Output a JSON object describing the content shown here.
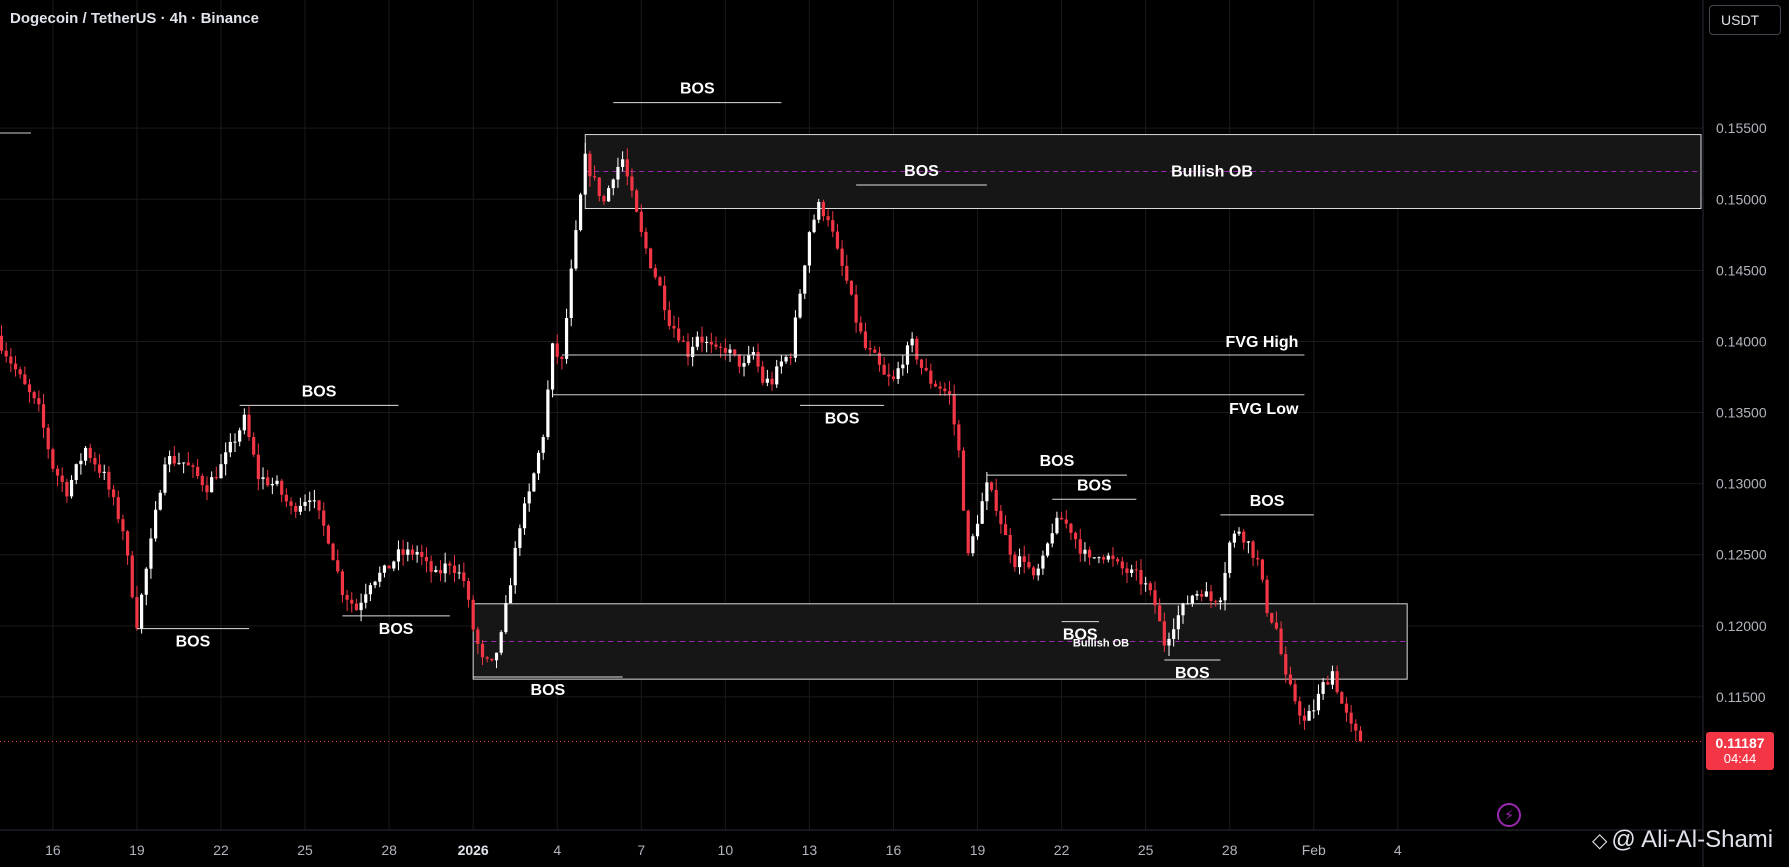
{
  "header": {
    "symbol": "Dogecoin / TetherUS · 4h · Binance"
  },
  "currency": "USDT",
  "price_tag": {
    "price": "0.11187",
    "countdown": "04:44"
  },
  "watermark": "@ Ali-Al-Shami",
  "colors": {
    "bull": "#ffffff",
    "bear": "#f23645",
    "background": "#000000",
    "grid": "#1a1a1a",
    "zone_border": "#d9d9d9",
    "zone_fill": "#161616",
    "mid_line": "#9c27b0"
  },
  "chart_data": {
    "type": "candlestick",
    "title": "Dogecoin / TetherUS · 4h · Binance",
    "ylim": [
      0.1074,
      0.1612
    ],
    "y_ticks": [
      "0.15500",
      "0.15000",
      "0.14500",
      "0.14000",
      "0.13500",
      "0.13000",
      "0.12500",
      "0.12000",
      "0.11500"
    ],
    "y_tick_values": [
      0.155,
      0.15,
      0.145,
      0.14,
      0.135,
      0.13,
      0.125,
      0.12,
      0.115
    ],
    "x_ticks": [
      "16",
      "19",
      "22",
      "25",
      "28",
      "2026",
      "4",
      "7",
      "10",
      "13",
      "16",
      "19",
      "22",
      "25",
      "28",
      "Feb",
      "4"
    ],
    "x_tick_bars": [
      11,
      29,
      47,
      65,
      83,
      101,
      119,
      137,
      155,
      173,
      191,
      209,
      227,
      245,
      263,
      281,
      299
    ],
    "current_price": 0.11187,
    "bars_per_day": 6,
    "first_bar_date": "Dec 14",
    "close_path": [
      [
        0,
        0.1398
      ],
      [
        5,
        0.1368
      ],
      [
        8,
        0.1352
      ],
      [
        11,
        0.1312
      ],
      [
        14,
        0.1295
      ],
      [
        18,
        0.1325
      ],
      [
        22,
        0.1305
      ],
      [
        26,
        0.1268
      ],
      [
        29,
        0.1202
      ],
      [
        32,
        0.1258
      ],
      [
        35,
        0.1318
      ],
      [
        39,
        0.1315
      ],
      [
        44,
        0.1298
      ],
      [
        47,
        0.1312
      ],
      [
        52,
        0.1345
      ],
      [
        55,
        0.1305
      ],
      [
        59,
        0.1298
      ],
      [
        62,
        0.1282
      ],
      [
        66,
        0.1292
      ],
      [
        70,
        0.1262
      ],
      [
        73,
        0.1225
      ],
      [
        76,
        0.1212
      ],
      [
        79,
        0.1232
      ],
      [
        82,
        0.1238
      ],
      [
        85,
        0.125
      ],
      [
        89,
        0.1252
      ],
      [
        91,
        0.1242
      ],
      [
        93,
        0.1235
      ],
      [
        96,
        0.1245
      ],
      [
        99,
        0.1232
      ],
      [
        101,
        0.1198
      ],
      [
        103,
        0.1175
      ],
      [
        105,
        0.1172
      ],
      [
        107,
        0.1192
      ],
      [
        109,
        0.1232
      ],
      [
        111,
        0.1272
      ],
      [
        113,
        0.1292
      ],
      [
        116,
        0.1335
      ],
      [
        118,
        0.1395
      ],
      [
        120,
        0.1385
      ],
      [
        122,
        0.1448
      ],
      [
        125,
        0.1528
      ],
      [
        127,
        0.1512
      ],
      [
        129,
        0.1498
      ],
      [
        131,
        0.1518
      ],
      [
        133,
        0.1528
      ],
      [
        135,
        0.1502
      ],
      [
        137,
        0.1475
      ],
      [
        139,
        0.1455
      ],
      [
        141,
        0.1438
      ],
      [
        143,
        0.1415
      ],
      [
        145,
        0.1405
      ],
      [
        147,
        0.1392
      ],
      [
        149,
        0.1405
      ],
      [
        151,
        0.1398
      ],
      [
        153,
        0.1392
      ],
      [
        155,
        0.1395
      ],
      [
        157,
        0.1388
      ],
      [
        159,
        0.1382
      ],
      [
        161,
        0.1392
      ],
      [
        163,
        0.1372
      ],
      [
        165,
        0.1372
      ],
      [
        167,
        0.1385
      ],
      [
        169,
        0.1392
      ],
      [
        171,
        0.1435
      ],
      [
        173,
        0.1478
      ],
      [
        175,
        0.1495
      ],
      [
        177,
        0.1488
      ],
      [
        179,
        0.1462
      ],
      [
        181,
        0.1442
      ],
      [
        183,
        0.1415
      ],
      [
        185,
        0.1395
      ],
      [
        187,
        0.1388
      ],
      [
        189,
        0.1375
      ],
      [
        191,
        0.1372
      ],
      [
        193,
        0.1388
      ],
      [
        195,
        0.1398
      ],
      [
        197,
        0.1382
      ],
      [
        199,
        0.1372
      ],
      [
        201,
        0.1368
      ],
      [
        203,
        0.1362
      ],
      [
        205,
        0.1322
      ],
      [
        207,
        0.1248
      ],
      [
        209,
        0.1275
      ],
      [
        211,
        0.1298
      ],
      [
        213,
        0.1285
      ],
      [
        215,
        0.1262
      ],
      [
        217,
        0.1245
      ],
      [
        219,
        0.1248
      ],
      [
        221,
        0.1232
      ],
      [
        223,
        0.1245
      ],
      [
        225,
        0.1268
      ],
      [
        227,
        0.1275
      ],
      [
        229,
        0.1268
      ],
      [
        231,
        0.1255
      ],
      [
        233,
        0.1245
      ],
      [
        235,
        0.1252
      ],
      [
        237,
        0.1248
      ],
      [
        239,
        0.1242
      ],
      [
        241,
        0.1238
      ],
      [
        243,
        0.1235
      ],
      [
        245,
        0.1228
      ],
      [
        247,
        0.1215
      ],
      [
        249,
        0.1188
      ],
      [
        251,
        0.1202
      ],
      [
        253,
        0.1212
      ],
      [
        255,
        0.1222
      ],
      [
        257,
        0.1225
      ],
      [
        259,
        0.1218
      ],
      [
        261,
        0.1222
      ],
      [
        263,
        0.1258
      ],
      [
        265,
        0.1268
      ],
      [
        267,
        0.1258
      ],
      [
        269,
        0.1245
      ],
      [
        271,
        0.1212
      ],
      [
        273,
        0.1198
      ],
      [
        275,
        0.1162
      ],
      [
        277,
        0.1148
      ],
      [
        279,
        0.1132
      ],
      [
        281,
        0.1142
      ],
      [
        283,
        0.1158
      ],
      [
        285,
        0.1168
      ],
      [
        287,
        0.1145
      ],
      [
        289,
        0.1128
      ],
      [
        291,
        0.11187
      ]
    ],
    "zones": [
      {
        "label": "Bullish OB",
        "top": 0.15455,
        "bottom": 0.14935,
        "start_bar": 125,
        "end_bar": null
      },
      {
        "label": "Bullish OB",
        "top": 0.12155,
        "bottom": 0.11625,
        "start_bar": 101,
        "end_bar": 301
      }
    ],
    "levels": [
      {
        "label": "FVG High",
        "value": 0.13905,
        "start_bar": 120,
        "end_bar": 279
      },
      {
        "label": "FVG Low",
        "value": 0.13625,
        "start_bar": 118,
        "end_bar": 279
      }
    ],
    "annotations": [
      {
        "label": "BOS",
        "value": 0.1568,
        "start_bar": 131,
        "end_bar": 167
      },
      {
        "label": "BOS",
        "value": 0.151,
        "start_bar": 183,
        "end_bar": 211
      },
      {
        "label": "BOS",
        "value": 0.1355,
        "start_bar": 51,
        "end_bar": 85
      },
      {
        "label": "BOS",
        "value": 0.1355,
        "start_bar": 171,
        "end_bar": 189
      },
      {
        "label": "BOS",
        "value": 0.1198,
        "start_bar": 29,
        "end_bar": 53
      },
      {
        "label": "BOS",
        "value": 0.1207,
        "start_bar": 73,
        "end_bar": 96
      },
      {
        "label": "BOS",
        "value": 0.1164,
        "start_bar": 101,
        "end_bar": 133
      },
      {
        "label": "BOS",
        "value": 0.1306,
        "start_bar": 211,
        "end_bar": 241
      },
      {
        "label": "BOS",
        "value": 0.1289,
        "start_bar": 225,
        "end_bar": 243
      },
      {
        "label": "BOS",
        "value": 0.1278,
        "start_bar": 261,
        "end_bar": 281
      },
      {
        "label": "BOS",
        "value": 0.1203,
        "start_bar": 227,
        "end_bar": 235
      },
      {
        "label": "BOS",
        "value": 0.1176,
        "start_bar": 249,
        "end_bar": 261
      }
    ],
    "grid": true
  }
}
